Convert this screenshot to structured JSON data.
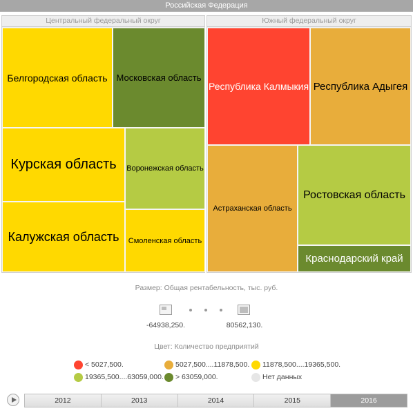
{
  "root_title": "Российская Федерация",
  "chart_data": {
    "type": "treemap",
    "size_measure": "Размер: Общая рентабельность, тыс. руб.",
    "color_measure": "Цвет: Количество предприятий",
    "size_range": {
      "min": "-64938,250.",
      "max": "80562,130."
    },
    "groups": [
      {
        "name": "Центральный федеральный округ",
        "items": [
          {
            "name": "Белгородская область",
            "color": "#ffd900",
            "color_bin": "11878,500....19365,500."
          },
          {
            "name": "Московская область",
            "color": "#6b8a2e",
            "color_bin": "> 63059,000."
          },
          {
            "name": "Курская область",
            "color": "#ffd900",
            "color_bin": "11878,500....19365,500."
          },
          {
            "name": "Воронежская область",
            "color": "#b5cb44",
            "color_bin": "19365,500....63059,000."
          },
          {
            "name": "Калужская область",
            "color": "#ffd900",
            "color_bin": "11878,500....19365,500."
          },
          {
            "name": "Смоленская область",
            "color": "#ffd900",
            "color_bin": "11878,500....19365,500."
          }
        ]
      },
      {
        "name": "Южный федеральный округ",
        "items": [
          {
            "name": "Республика Калмыкия",
            "color": "#ff4430",
            "color_bin": "< 5027,500."
          },
          {
            "name": "Республика Адыгея",
            "color": "#e8ad3b",
            "color_bin": "5027,500....11878,500."
          },
          {
            "name": "Астраханская область",
            "color": "#e8ad3b",
            "color_bin": "5027,500....11878,500."
          },
          {
            "name": "Ростовская область",
            "color": "#b5cb44",
            "color_bin": "19365,500....63059,000."
          },
          {
            "name": "Краснодарский край",
            "color": "#6b8a2e",
            "color_bin": "> 63059,000."
          }
        ]
      }
    ],
    "legend": [
      {
        "label": "< 5027,500.",
        "color": "#ff4430"
      },
      {
        "label": "5027,500....11878,500.",
        "color": "#e8ad3b"
      },
      {
        "label": "11878,500....19365,500.",
        "color": "#ffd900"
      },
      {
        "label": "19365,500....63059,000.",
        "color": "#b5cb44"
      },
      {
        "label": "> 63059,000.",
        "color": "#6b8a2e"
      },
      {
        "label": "Нет данных",
        "color": "#e6e6e6"
      }
    ]
  },
  "timeline": {
    "years": [
      "2012",
      "2013",
      "2014",
      "2015",
      "2016"
    ],
    "selected": "2016"
  }
}
